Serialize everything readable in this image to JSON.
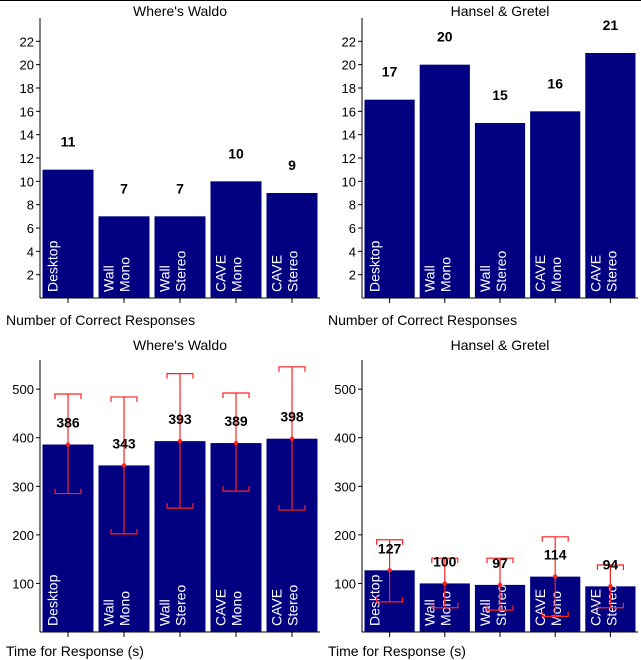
{
  "colors": {
    "bar": "#000080",
    "bar_text": "#ffffff",
    "error": "#ff2020",
    "axis": "#000000",
    "value_text": "#000000"
  },
  "chart_data": [
    {
      "type": "bar",
      "title": "Where's Waldo",
      "xlabel": "Number of Correct Responses",
      "ylabel": "",
      "ylim": [
        0,
        24
      ],
      "yticks": [
        2,
        4,
        6,
        8,
        10,
        12,
        14,
        16,
        18,
        20,
        22
      ],
      "categories": [
        "Desktop",
        "Wall Mono",
        "Wall Stereo",
        "CAVE Mono",
        "CAVE Stereo"
      ],
      "category_lines": [
        [
          "Desktop"
        ],
        [
          "Wall",
          "Mono"
        ],
        [
          "Wall",
          "Stereo"
        ],
        [
          "CAVE",
          "Mono"
        ],
        [
          "CAVE",
          "Stereo"
        ]
      ],
      "values": [
        11,
        7,
        7,
        10,
        9
      ],
      "value_labels": [
        "11",
        "7",
        "7",
        "10",
        "9"
      ],
      "error_high": null,
      "error_low": null
    },
    {
      "type": "bar",
      "title": "Hansel & Gretel",
      "xlabel": "Number of Correct Responses",
      "ylabel": "",
      "ylim": [
        0,
        24
      ],
      "yticks": [
        2,
        4,
        6,
        8,
        10,
        12,
        14,
        16,
        18,
        20,
        22
      ],
      "categories": [
        "Desktop",
        "Wall Mono",
        "Wall Stereo",
        "CAVE Mono",
        "CAVE Stereo"
      ],
      "category_lines": [
        [
          "Desktop"
        ],
        [
          "Wall",
          "Mono"
        ],
        [
          "Wall",
          "Stereo"
        ],
        [
          "CAVE",
          "Mono"
        ],
        [
          "CAVE",
          "Stereo"
        ]
      ],
      "values": [
        17,
        20,
        15,
        16,
        21
      ],
      "value_labels": [
        "17",
        "20",
        "15",
        "16",
        "21"
      ],
      "error_high": null,
      "error_low": null
    },
    {
      "type": "bar",
      "title": "Where's Waldo",
      "xlabel": "Time for Response (s)",
      "ylabel": "",
      "ylim": [
        0,
        560
      ],
      "yticks": [
        100,
        200,
        300,
        400,
        500
      ],
      "categories": [
        "Desktop",
        "Wall Mono",
        "Wall Stereo",
        "CAVE Mono",
        "CAVE Stereo"
      ],
      "category_lines": [
        [
          "Desktop"
        ],
        [
          "Wall",
          "Mono"
        ],
        [
          "Wall",
          "Stereo"
        ],
        [
          "CAVE",
          "Mono"
        ],
        [
          "CAVE",
          "Stereo"
        ]
      ],
      "values": [
        386,
        343,
        393,
        389,
        398
      ],
      "value_labels": [
        "386",
        "343",
        "393",
        "389",
        "398"
      ],
      "error_high": [
        490,
        484,
        532,
        492,
        546
      ],
      "error_low": [
        285,
        202,
        255,
        290,
        251
      ]
    },
    {
      "type": "bar",
      "title": "Hansel & Gretel",
      "xlabel": "Time for Response (s)",
      "ylabel": "",
      "ylim": [
        0,
        560
      ],
      "yticks": [
        100,
        200,
        300,
        400,
        500
      ],
      "categories": [
        "Desktop",
        "Wall Mono",
        "Wall Stereo",
        "CAVE Mono",
        "CAVE Stereo"
      ],
      "category_lines": [
        [
          "Desktop"
        ],
        [
          "Wall",
          "Mono"
        ],
        [
          "Wall",
          "Stereo"
        ],
        [
          "CAVE",
          "Mono"
        ],
        [
          "CAVE",
          "Stereo"
        ]
      ],
      "values": [
        127,
        100,
        97,
        114,
        94
      ],
      "value_labels": [
        "127",
        "100",
        "97",
        "114",
        "94"
      ],
      "error_high": [
        190,
        152,
        152,
        196,
        138
      ],
      "error_low": [
        62,
        50,
        45,
        32,
        50
      ]
    }
  ]
}
